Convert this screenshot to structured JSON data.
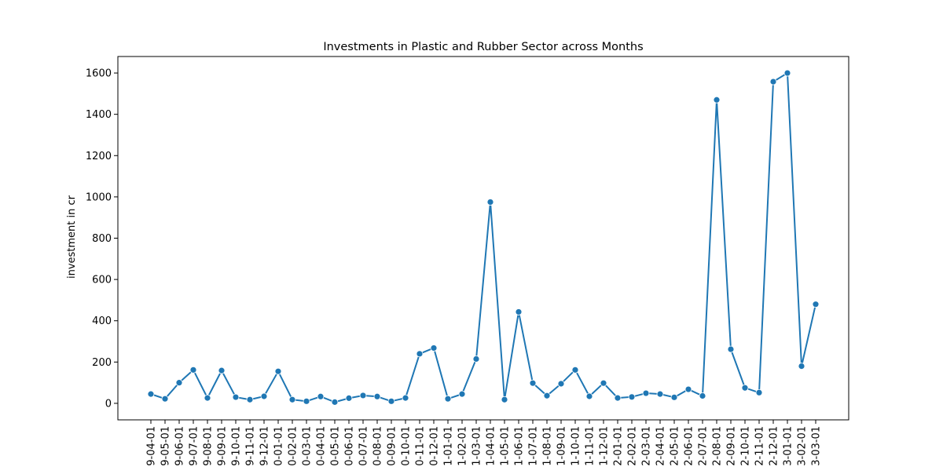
{
  "chart_data": {
    "type": "line",
    "title": "Investments in Plastic and Rubber Sector across Months",
    "xlabel": "",
    "ylabel": "investment in cr",
    "ylim": [
      -80,
      1680
    ],
    "yticks": [
      0,
      200,
      400,
      600,
      800,
      1000,
      1200,
      1400,
      1600
    ],
    "grid": false,
    "line_color": "#1f77b4",
    "marker": "circle",
    "categories": [
      "9-04-01",
      "9-05-01",
      "9-06-01",
      "9-07-01",
      "9-08-01",
      "9-09-01",
      "9-10-01",
      "9-11-01",
      "9-12-01",
      "0-01-01",
      "0-02-01",
      "0-03-01",
      "0-04-01",
      "0-05-01",
      "0-06-01",
      "0-07-01",
      "0-08-01",
      "0-09-01",
      "0-10-01",
      "0-11-01",
      "0-12-01",
      "1-01-01",
      "1-02-01",
      "1-03-01",
      "1-04-01",
      "1-05-01",
      "1-06-01",
      "1-07-01",
      "1-08-01",
      "1-09-01",
      "1-10-01",
      "1-11-01",
      "1-12-01",
      "2-01-01",
      "2-02-01",
      "2-03-01",
      "2-04-01",
      "2-05-01",
      "2-06-01",
      "2-07-01",
      "2-08-01",
      "2-09-01",
      "2-10-01",
      "2-11-01",
      "2-12-01",
      "3-01-01",
      "3-02-01",
      "3-03-01"
    ],
    "values": [
      45,
      22,
      100,
      162,
      26,
      159,
      30,
      18,
      34,
      155,
      18,
      10,
      33,
      6,
      25,
      38,
      33,
      10,
      26,
      240,
      268,
      22,
      45,
      215,
      975,
      18,
      443,
      98,
      37,
      95,
      162,
      34,
      98,
      26,
      31,
      49,
      45,
      29,
      68,
      36,
      1470,
      262,
      75,
      52,
      1558,
      1600,
      180,
      480
    ]
  }
}
